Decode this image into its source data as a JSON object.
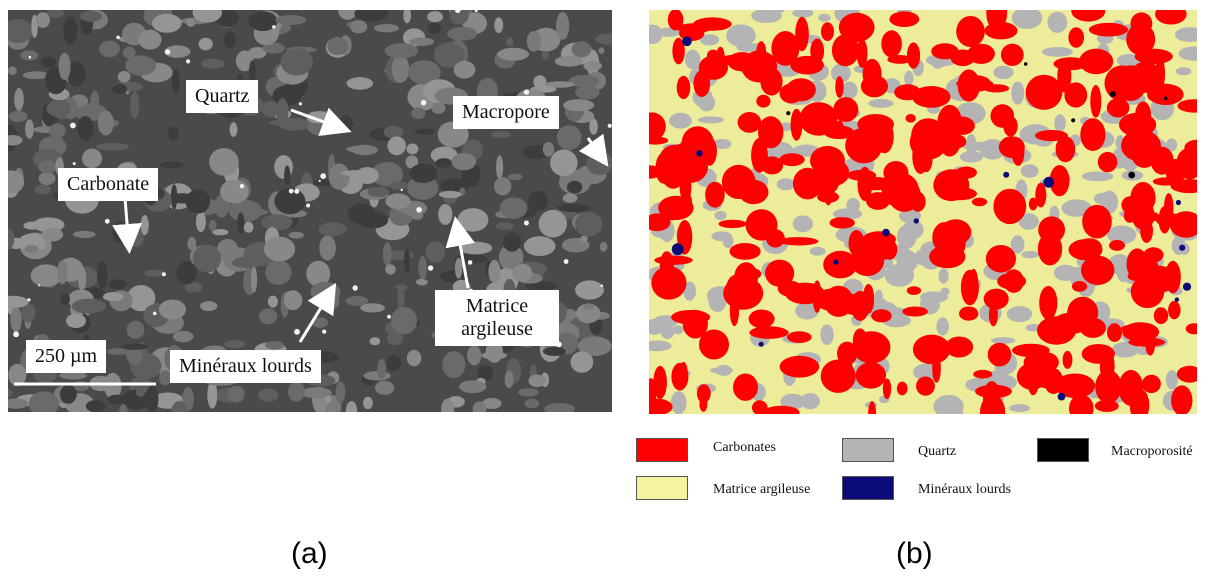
{
  "panel_a": {
    "labels": {
      "quartz": "Quartz",
      "macropore": "Macropore",
      "carbonate": "Carbonate",
      "matrice_line1": "Matrice",
      "matrice_line2": "argileuse",
      "mineraux": "Minéraux lourds",
      "scale": "250 µm"
    },
    "caption": "(a)"
  },
  "panel_b": {
    "caption": "(b)"
  },
  "legend": [
    {
      "label": "Carbonates",
      "color": "#ff0000"
    },
    {
      "label": "Quartz",
      "color": "#b4b4b4"
    },
    {
      "label": "Macroporosité",
      "color": "#000000"
    },
    {
      "label": "Matrice argileuse",
      "color": "#f4f4a0"
    },
    {
      "label": "Minéraux lourds",
      "color": "#0a0a78"
    }
  ]
}
